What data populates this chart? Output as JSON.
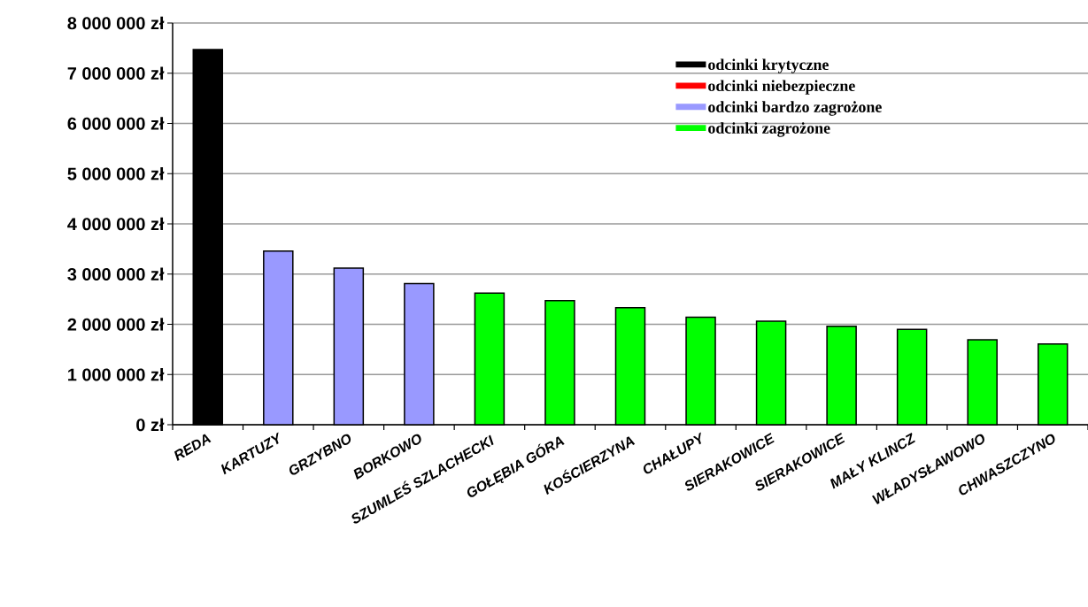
{
  "chart_data": {
    "type": "bar",
    "categories": [
      "REDA",
      "KARTUZY",
      "GRZYBNO",
      "BORKOWO",
      "SZUMLEŚ SZLACHECKI",
      "GOŁĘBIA GÓRA",
      "KOŚCIERZYNA",
      "CHAŁUPY",
      "SIERAKOWICE",
      "SIERAKOWICE",
      "MAŁY KLINCZ",
      "WŁADYSŁAWOWO",
      "CHWASZCZYNO"
    ],
    "series": [
      {
        "name": "odcinki krytyczne",
        "color": "#000000",
        "values": [
          7470000,
          null,
          null,
          null,
          null,
          null,
          null,
          null,
          null,
          null,
          null,
          null,
          null
        ]
      },
      {
        "name": "odcinki niebezpieczne",
        "color": "#ff0000",
        "values": [
          null,
          null,
          null,
          null,
          null,
          null,
          null,
          null,
          null,
          null,
          null,
          null,
          null
        ]
      },
      {
        "name": "odcinki bardzo zagrożone",
        "color": "#9999ff",
        "values": [
          null,
          3460000,
          3120000,
          2810000,
          null,
          null,
          null,
          null,
          null,
          null,
          null,
          null,
          null
        ]
      },
      {
        "name": "odcinki zagrożone",
        "color": "#00ff00",
        "values": [
          null,
          null,
          null,
          null,
          2620000,
          2470000,
          2330000,
          2140000,
          2060000,
          1960000,
          1900000,
          1690000,
          1610000
        ]
      }
    ],
    "ylim": [
      0,
      8000000
    ],
    "yticks": [
      {
        "value": 0,
        "label": "0 zł"
      },
      {
        "value": 1000000,
        "label": "1 000 000 zł"
      },
      {
        "value": 2000000,
        "label": "2 000 000 zł"
      },
      {
        "value": 3000000,
        "label": "3 000 000 zł"
      },
      {
        "value": 4000000,
        "label": "4 000 000 zł"
      },
      {
        "value": 5000000,
        "label": "5 000 000 zł"
      },
      {
        "value": 6000000,
        "label": "6 000 000 zł"
      },
      {
        "value": 7000000,
        "label": "7 000 000 zł"
      },
      {
        "value": 8000000,
        "label": "8 000 000 zł"
      }
    ],
    "grid": "y",
    "legend": "top right"
  }
}
